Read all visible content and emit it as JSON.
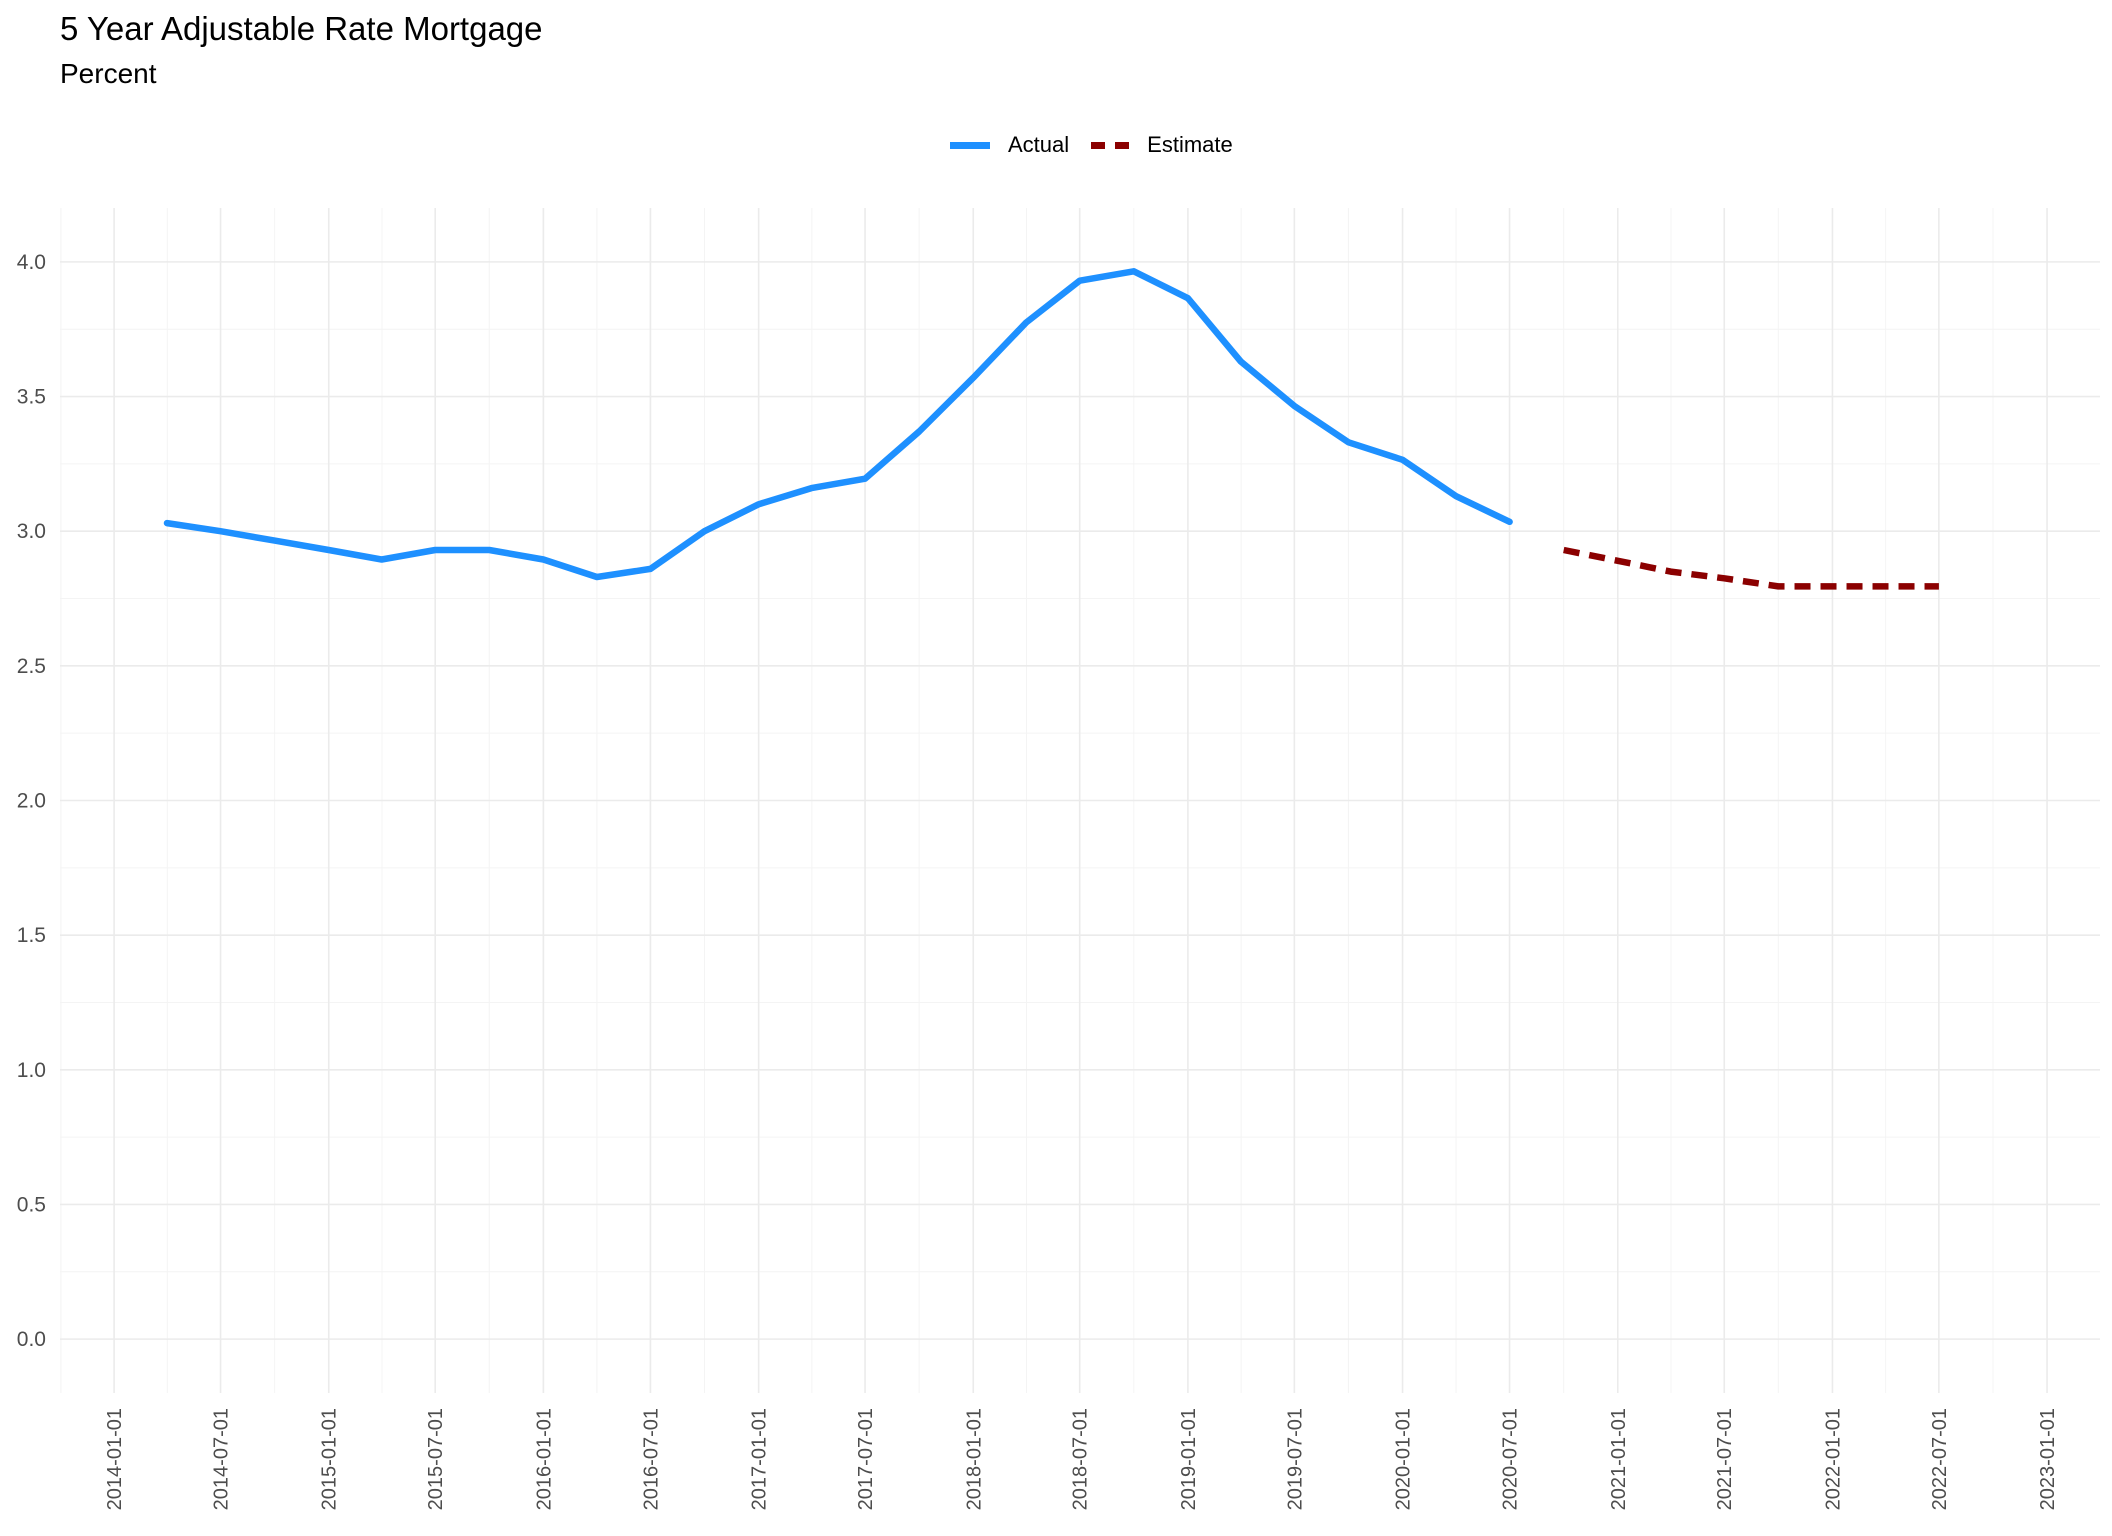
{
  "chart_data": {
    "type": "line",
    "title": "5 Year Adjustable Rate Mortgage",
    "subtitle": "Percent",
    "xlabel": "",
    "ylabel": "",
    "ylim": [
      -0.2,
      4.2
    ],
    "xlim": [
      "2013-10-01",
      "2023-04-01"
    ],
    "yticks": [
      0.0,
      0.5,
      1.0,
      1.5,
      2.0,
      2.5,
      3.0,
      3.5,
      4.0
    ],
    "ytick_labels": [
      "0.0",
      "0.5",
      "1.0",
      "1.5",
      "2.0",
      "2.5",
      "3.0",
      "3.5",
      "4.0"
    ],
    "xticks": [
      "2014-01-01",
      "2014-07-01",
      "2015-01-01",
      "2015-07-01",
      "2016-01-01",
      "2016-07-01",
      "2017-01-01",
      "2017-07-01",
      "2018-01-01",
      "2018-07-01",
      "2019-01-01",
      "2019-07-01",
      "2020-01-01",
      "2020-07-01",
      "2021-01-01",
      "2021-07-01",
      "2022-01-01",
      "2022-07-01",
      "2023-01-01"
    ],
    "grid": true,
    "legend_position": "top",
    "series": [
      {
        "name": "Actual",
        "color": "#1E90FF",
        "style": "solid",
        "x": [
          "2014-04-01",
          "2014-07-01",
          "2014-10-01",
          "2015-01-01",
          "2015-04-01",
          "2015-07-01",
          "2015-10-01",
          "2016-01-01",
          "2016-04-01",
          "2016-07-01",
          "2016-10-01",
          "2017-01-01",
          "2017-04-01",
          "2017-07-01",
          "2017-10-01",
          "2018-01-01",
          "2018-04-01",
          "2018-07-01",
          "2018-10-01",
          "2019-01-01",
          "2019-04-01",
          "2019-07-01",
          "2019-10-01",
          "2020-01-01",
          "2020-04-01",
          "2020-07-01"
        ],
        "values": [
          3.03,
          3.0,
          2.965,
          2.93,
          2.895,
          2.93,
          2.93,
          2.895,
          2.83,
          2.86,
          3.0,
          3.1,
          3.16,
          3.195,
          3.37,
          3.57,
          3.775,
          3.93,
          3.965,
          3.865,
          3.63,
          3.465,
          3.33,
          3.265,
          3.13,
          3.035
        ]
      },
      {
        "name": "Estimate",
        "color": "#8B0000",
        "style": "dashed",
        "x": [
          "2020-10-01",
          "2021-01-01",
          "2021-04-01",
          "2021-07-01",
          "2021-10-01",
          "2022-01-01",
          "2022-04-01",
          "2022-07-01"
        ],
        "values": [
          2.93,
          2.89,
          2.85,
          2.825,
          2.795,
          2.795,
          2.795,
          2.795
        ]
      }
    ]
  }
}
